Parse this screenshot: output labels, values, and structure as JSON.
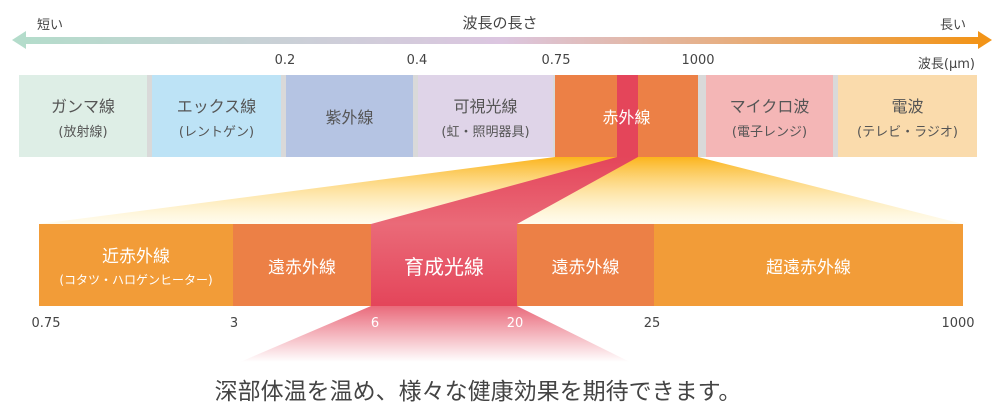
{
  "header": {
    "short": "短い",
    "title": "波長の長さ",
    "long": "長い",
    "unit": "波長(μm)"
  },
  "top_ticks": [
    "0.2",
    "0.4",
    "0.75",
    "1000"
  ],
  "spectrum": [
    {
      "name": "ガンマ線",
      "sub": "(放射線)",
      "color": "#deeee6"
    },
    {
      "name": "エックス線",
      "sub": "(レントゲン)",
      "color": "#bde3f6"
    },
    {
      "name": "紫外線",
      "sub": "",
      "color": "#b5c4e3"
    },
    {
      "name": "可視光線",
      "sub": "(虹・照明器具)",
      "color": "#dfd4e8"
    },
    {
      "name": "赤外線",
      "sub": "",
      "color": "#ec8046"
    },
    {
      "name": "マイクロ波",
      "sub": "(電子レンジ)",
      "color": "#f4b6b6"
    },
    {
      "name": "電波",
      "sub": "(テレビ・ラジオ)",
      "color": "#fadbac"
    }
  ],
  "infrared": [
    {
      "name": "近赤外線",
      "sub": "(コタツ・ハロゲンヒーター)",
      "color": "#f29c38"
    },
    {
      "name": "遠赤外線",
      "sub": "",
      "color": "#ec8046"
    },
    {
      "name": "育成光線",
      "sub": "",
      "color": "#e4455a"
    },
    {
      "name": "遠赤外線",
      "sub": "",
      "color": "#ec8046"
    },
    {
      "name": "超遠赤外線",
      "sub": "",
      "color": "#f29c38"
    }
  ],
  "bottom_ticks": [
    "0.75",
    "3",
    "6",
    "20",
    "25",
    "1000"
  ],
  "caption": "深部体温を温め、様々な健康効果を期待できます。"
}
